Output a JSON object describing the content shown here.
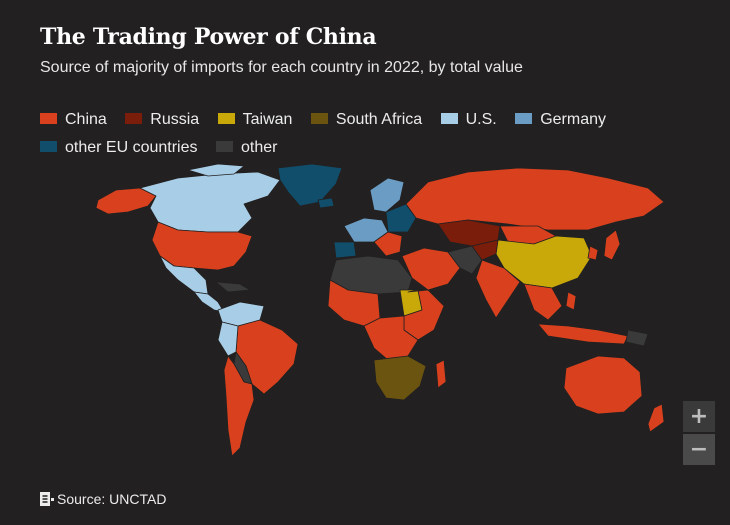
{
  "title": "The Trading Power of China",
  "subtitle": "Source of majority of imports for each country in 2022, by total value",
  "legend": [
    {
      "label": "China",
      "color": "#d9411e"
    },
    {
      "label": "Russia",
      "color": "#7a1d0a"
    },
    {
      "label": "Taiwan",
      "color": "#c9a80a"
    },
    {
      "label": "South Africa",
      "color": "#6b5310"
    },
    {
      "label": "U.S.",
      "color": "#a8cde6"
    },
    {
      "label": "Germany",
      "color": "#6a9cc4"
    },
    {
      "label": "other EU countries",
      "color": "#104e6b"
    },
    {
      "label": "other",
      "color": "#3a3a3a"
    }
  ],
  "zoom": {
    "in": "+",
    "out": "−"
  },
  "source": "Source: UNCTAD"
}
